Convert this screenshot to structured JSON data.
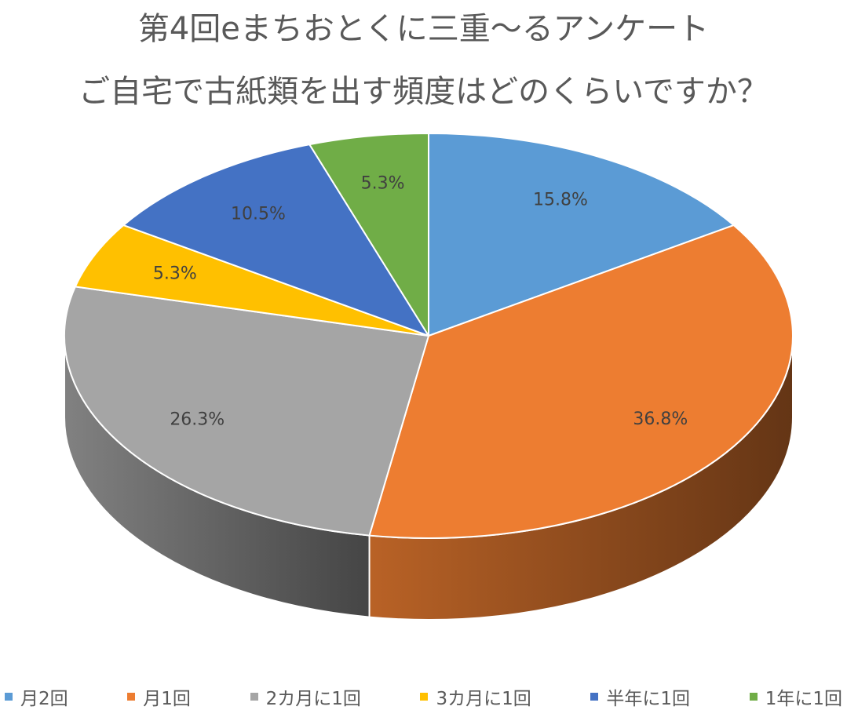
{
  "chart_data": {
    "type": "pie",
    "title": "第4回eまちおとくに三重〜るアンケート",
    "subtitle": "ご自宅で古紙類を出す頻度はどのくらいですか？",
    "categories": [
      "月2回",
      "月1回",
      "2カ月に1回",
      "3カ月に1回",
      "半年に1回",
      "1年に1回"
    ],
    "values": [
      15.8,
      36.8,
      26.3,
      5.3,
      10.5,
      5.3
    ],
    "labels": [
      "15.8%",
      "36.8%",
      "26.3%",
      "5.3%",
      "10.5%",
      "5.3%"
    ],
    "colors": [
      "#5B9BD5",
      "#ED7D31",
      "#A5A5A5",
      "#FFC000",
      "#4472C4",
      "#70AD47"
    ],
    "legend_position": "bottom",
    "style": "3d"
  }
}
